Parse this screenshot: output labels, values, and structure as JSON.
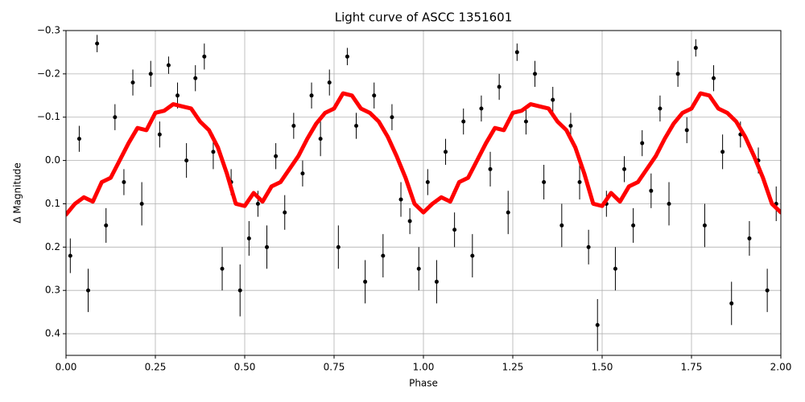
{
  "chart_data": {
    "type": "scatter",
    "title": "Light curve of ASCC 1351601",
    "xlabel": "Phase",
    "ylabel": "Δ Magnitude",
    "xlim": [
      0,
      2
    ],
    "ylim": [
      0.45,
      -0.3
    ],
    "xticks": [
      {
        "value": 0,
        "label": "0.00"
      },
      0.25,
      {
        "value": 0.5,
        "label": "0.50"
      },
      0.75,
      {
        "value": 1,
        "label": "1.00"
      },
      1.25,
      {
        "value": 1.5,
        "label": "1.50"
      },
      1.75,
      {
        "value": 2,
        "label": "2.00"
      }
    ],
    "yticks": [
      {
        "value": -0.3,
        "label": "−0.3"
      },
      {
        "value": -0.2,
        "label": "−0.2"
      },
      {
        "value": -0.1,
        "label": "−0.1"
      },
      {
        "value": 0,
        "label": "0.0"
      },
      0.1,
      0.2,
      0.3,
      0.4
    ],
    "grid": true,
    "series": [
      {
        "type": "errorbar",
        "color": "#000000",
        "x": [
          0.012,
          0.037,
          0.062,
          0.087,
          0.112,
          0.137,
          0.162,
          0.187,
          0.212,
          0.237,
          0.262,
          0.287,
          0.312,
          0.337,
          0.362,
          0.387,
          0.412,
          0.437,
          0.462,
          0.487,
          0.512,
          0.537,
          0.562,
          0.587,
          0.612,
          0.637,
          0.662,
          0.687,
          0.712,
          0.737,
          0.762,
          0.787,
          0.812,
          0.837,
          0.862,
          0.887,
          0.912,
          0.937,
          0.962,
          0.987,
          1.012,
          1.037,
          1.062,
          1.087,
          1.112,
          1.137,
          1.162,
          1.187,
          1.212,
          1.237,
          1.262,
          1.287,
          1.312,
          1.337,
          1.362,
          1.387,
          1.412,
          1.437,
          1.462,
          1.487,
          1.512,
          1.537,
          1.562,
          1.587,
          1.612,
          1.637,
          1.662,
          1.687,
          1.712,
          1.737,
          1.762,
          1.787,
          1.812,
          1.837,
          1.862,
          1.887,
          1.912,
          1.937,
          1.962,
          1.987
        ],
        "values": [
          0.22,
          -0.05,
          0.3,
          -0.27,
          0.15,
          -0.1,
          0.05,
          -0.18,
          0.1,
          -0.2,
          -0.06,
          -0.22,
          -0.15,
          0.0,
          -0.19,
          -0.24,
          -0.02,
          0.25,
          0.05,
          0.3,
          0.18,
          0.1,
          0.2,
          -0.01,
          0.12,
          -0.08,
          0.03,
          -0.15,
          -0.05,
          -0.18,
          0.2,
          -0.24,
          -0.08,
          0.28,
          -0.15,
          0.22,
          -0.1,
          0.09,
          0.14,
          0.25,
          0.05,
          0.28,
          -0.02,
          0.16,
          -0.09,
          0.22,
          -0.12,
          0.02,
          -0.17,
          0.12,
          -0.25,
          -0.09,
          -0.2,
          0.05,
          -0.14,
          0.15,
          -0.08,
          0.05,
          0.2,
          0.38,
          0.1,
          0.25,
          0.02,
          0.15,
          -0.04,
          0.07,
          -0.12,
          0.1,
          -0.2,
          -0.07,
          -0.26,
          0.15,
          -0.19,
          -0.02,
          0.33,
          -0.06,
          0.18,
          0.0,
          0.3,
          0.1
        ],
        "errors": [
          0.04,
          0.03,
          0.05,
          0.02,
          0.04,
          0.03,
          0.03,
          0.03,
          0.05,
          0.03,
          0.03,
          0.02,
          0.03,
          0.04,
          0.03,
          0.03,
          0.04,
          0.05,
          0.03,
          0.06,
          0.04,
          0.03,
          0.05,
          0.03,
          0.04,
          0.03,
          0.03,
          0.03,
          0.04,
          0.03,
          0.05,
          0.02,
          0.03,
          0.05,
          0.03,
          0.05,
          0.03,
          0.04,
          0.03,
          0.05,
          0.03,
          0.05,
          0.03,
          0.04,
          0.03,
          0.05,
          0.03,
          0.04,
          0.03,
          0.05,
          0.02,
          0.03,
          0.03,
          0.04,
          0.03,
          0.05,
          0.03,
          0.04,
          0.04,
          0.06,
          0.03,
          0.05,
          0.03,
          0.04,
          0.03,
          0.04,
          0.03,
          0.05,
          0.03,
          0.03,
          0.02,
          0.05,
          0.03,
          0.04,
          0.05,
          0.03,
          0.04,
          0.03,
          0.05,
          0.04
        ]
      },
      {
        "type": "line",
        "color": "#ff0000",
        "x": [
          0,
          0.025,
          0.05,
          0.075,
          0.1,
          0.125,
          0.15,
          0.175,
          0.2,
          0.225,
          0.25,
          0.275,
          0.3,
          0.325,
          0.35,
          0.375,
          0.4,
          0.425,
          0.45,
          0.475,
          0.5,
          0.525,
          0.55,
          0.575,
          0.6,
          0.625,
          0.65,
          0.675,
          0.7,
          0.725,
          0.75,
          0.775,
          0.8,
          0.825,
          0.85,
          0.875,
          0.9,
          0.925,
          0.95,
          0.975,
          1,
          1.025,
          1.05,
          1.075,
          1.1,
          1.125,
          1.15,
          1.175,
          1.2,
          1.225,
          1.25,
          1.275,
          1.3,
          1.325,
          1.35,
          1.375,
          1.4,
          1.425,
          1.45,
          1.475,
          1.5,
          1.525,
          1.55,
          1.575,
          1.6,
          1.625,
          1.65,
          1.675,
          1.7,
          1.725,
          1.75,
          1.775,
          1.8,
          1.825,
          1.85,
          1.875,
          1.9,
          1.925,
          1.95,
          1.975,
          2
        ],
        "values": [
          0.125,
          0.1,
          0.085,
          0.095,
          0.05,
          0.04,
          0.0,
          -0.04,
          -0.075,
          -0.07,
          -0.11,
          -0.115,
          -0.13,
          -0.125,
          -0.12,
          -0.09,
          -0.07,
          -0.03,
          0.03,
          0.1,
          0.105,
          0.075,
          0.095,
          0.06,
          0.05,
          0.02,
          -0.01,
          -0.05,
          -0.085,
          -0.11,
          -0.12,
          -0.155,
          -0.15,
          -0.12,
          -0.11,
          -0.09,
          -0.055,
          -0.01,
          0.04,
          0.1,
          0.12,
          0.1,
          0.085,
          0.095,
          0.05,
          0.04,
          0.0,
          -0.04,
          -0.075,
          -0.07,
          -0.11,
          -0.115,
          -0.13,
          -0.125,
          -0.12,
          -0.09,
          -0.07,
          -0.03,
          0.03,
          0.1,
          0.105,
          0.075,
          0.095,
          0.06,
          0.05,
          0.02,
          -0.01,
          -0.05,
          -0.085,
          -0.11,
          -0.12,
          -0.155,
          -0.15,
          -0.12,
          -0.11,
          -0.09,
          -0.055,
          -0.01,
          0.04,
          0.1,
          0.12
        ]
      }
    ]
  }
}
